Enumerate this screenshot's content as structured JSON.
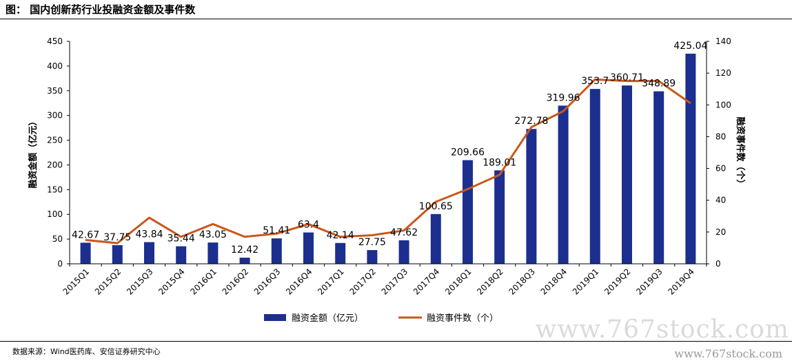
{
  "title": "图： 国内创新药行业投融资金额及事件数",
  "source": "数据来源：Wind医药库、安信证券研究中心",
  "watermark": "www.767stock.com",
  "watermark_small": "www.767stock.com",
  "chart_data": {
    "type": "bar+line",
    "categories": [
      "2015Q1",
      "2015Q2",
      "2015Q3",
      "2015Q4",
      "2016Q1",
      "2016Q2",
      "2016Q3",
      "2016Q4",
      "2017Q1",
      "2017Q2",
      "2017Q3",
      "2017Q4",
      "2018Q1",
      "2018Q2",
      "2018Q3",
      "2018Q4",
      "2019Q1",
      "2019Q2",
      "2019Q3",
      "2019Q4"
    ],
    "series": [
      {
        "name": "融资金额（亿元）",
        "type": "bar",
        "axis": "left",
        "color": "#1c2f8f",
        "values": [
          42.67,
          37.75,
          43.84,
          35.44,
          43.05,
          12.42,
          51.41,
          63.4,
          42.14,
          27.75,
          47.62,
          100.65,
          209.66,
          189.01,
          272.78,
          319.96,
          353.7,
          360.71,
          348.89,
          425.04
        ]
      },
      {
        "name": "融资事件数（个）",
        "type": "line",
        "axis": "right",
        "color": "#c8581a",
        "values": [
          15,
          13,
          29,
          17,
          25,
          17,
          19,
          25,
          17,
          18,
          21,
          39,
          47,
          56,
          86,
          96,
          116,
          115,
          115,
          101
        ]
      }
    ],
    "ylabel_left": "融资金额（亿元）",
    "ylabel_right": "融资事件数（个）",
    "ylim_left": [
      0,
      450
    ],
    "yticks_left": [
      0,
      50,
      100,
      150,
      200,
      250,
      300,
      350,
      400,
      450
    ],
    "ylim_right": [
      0,
      140
    ],
    "yticks_right": [
      0,
      20,
      40,
      60,
      80,
      100,
      120,
      140
    ],
    "legend_position": "bottom",
    "grid": false
  }
}
